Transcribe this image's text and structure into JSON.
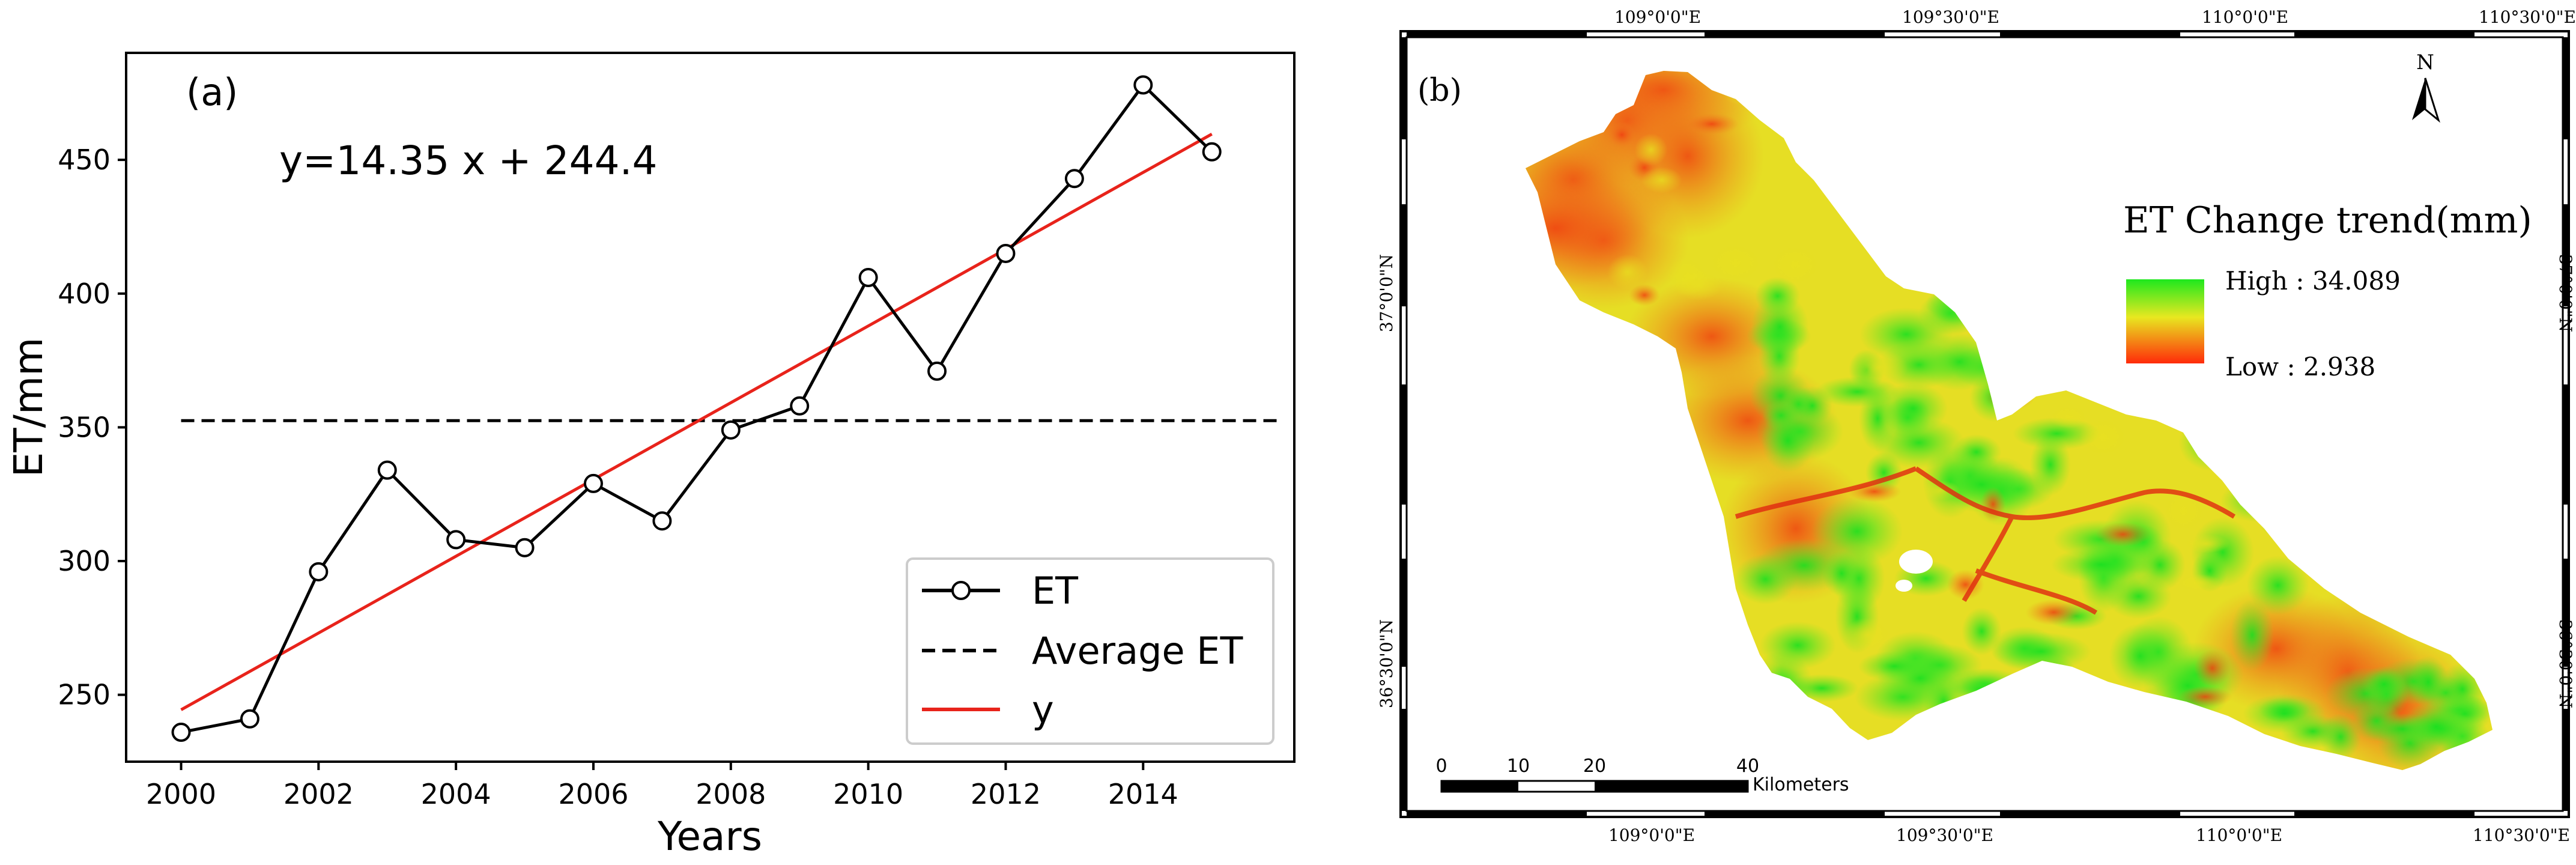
{
  "chart_data": [
    {
      "type": "line",
      "panel_label": "(a)",
      "equation": "y=14.35 x + 244.4",
      "xlabel": "Years",
      "ylabel": "ET/mm",
      "xlim": [
        1999.2,
        2016.2
      ],
      "ylim": [
        225,
        490
      ],
      "xticks": [
        2000,
        2002,
        2004,
        2006,
        2008,
        2010,
        2012,
        2014
      ],
      "xtick_labels": [
        "2000",
        "2002",
        "2004",
        "2006",
        "2008",
        "2010",
        "2012",
        "2014"
      ],
      "yticks": [
        250,
        300,
        350,
        400,
        450
      ],
      "ytick_labels": [
        "250",
        "300",
        "350",
        "400",
        "450"
      ],
      "x": [
        2000,
        2001,
        2002,
        2003,
        2004,
        2005,
        2006,
        2007,
        2008,
        2009,
        2010,
        2011,
        2012,
        2013,
        2014,
        2015
      ],
      "series": [
        {
          "name": "ET",
          "style": "solid-black-circle-markers",
          "values": [
            236,
            241,
            296,
            334,
            308,
            305,
            329,
            315,
            349,
            358,
            406,
            371,
            415,
            443,
            478,
            453
          ]
        },
        {
          "name": "Average ET",
          "style": "dashed-black",
          "x": [
            2000,
            2016
          ],
          "values": [
            352.5,
            352.5
          ]
        },
        {
          "name": "y",
          "style": "solid-red",
          "x": [
            2000,
            2015
          ],
          "values": [
            244.4,
            459.65
          ]
        }
      ],
      "legend_labels": [
        "ET",
        "Average ET",
        "y"
      ],
      "legend_position": "lower-right",
      "colors": {
        "et_line": "#000000",
        "fit_line": "#e8231b",
        "average": "#000000"
      }
    },
    {
      "type": "map",
      "panel_label": "(b)",
      "legend_title": "ET Change trend(mm)",
      "legend_high": "High : 34.089",
      "legend_low": "Low  : 2.938",
      "north_label": "N",
      "lon_labels_top": [
        "109°0'0\"E",
        "109°30'0\"E",
        "110°0'0\"E",
        "110°30'0\"E"
      ],
      "lon_labels_bottom": [
        "109°0'0\"E",
        "109°30'0\"E",
        "110°0'0\"E",
        "110°30'0\"E"
      ],
      "lat_labels": [
        "37°0'0\"N",
        "36°30'0\"N"
      ],
      "scale_labels": [
        "0",
        "10",
        "20",
        "40"
      ],
      "scale_unit": "Kilometers",
      "colors": {
        "high": "#1ee81e",
        "mid": "#f0e020",
        "low": "#ff2a0a"
      }
    }
  ]
}
